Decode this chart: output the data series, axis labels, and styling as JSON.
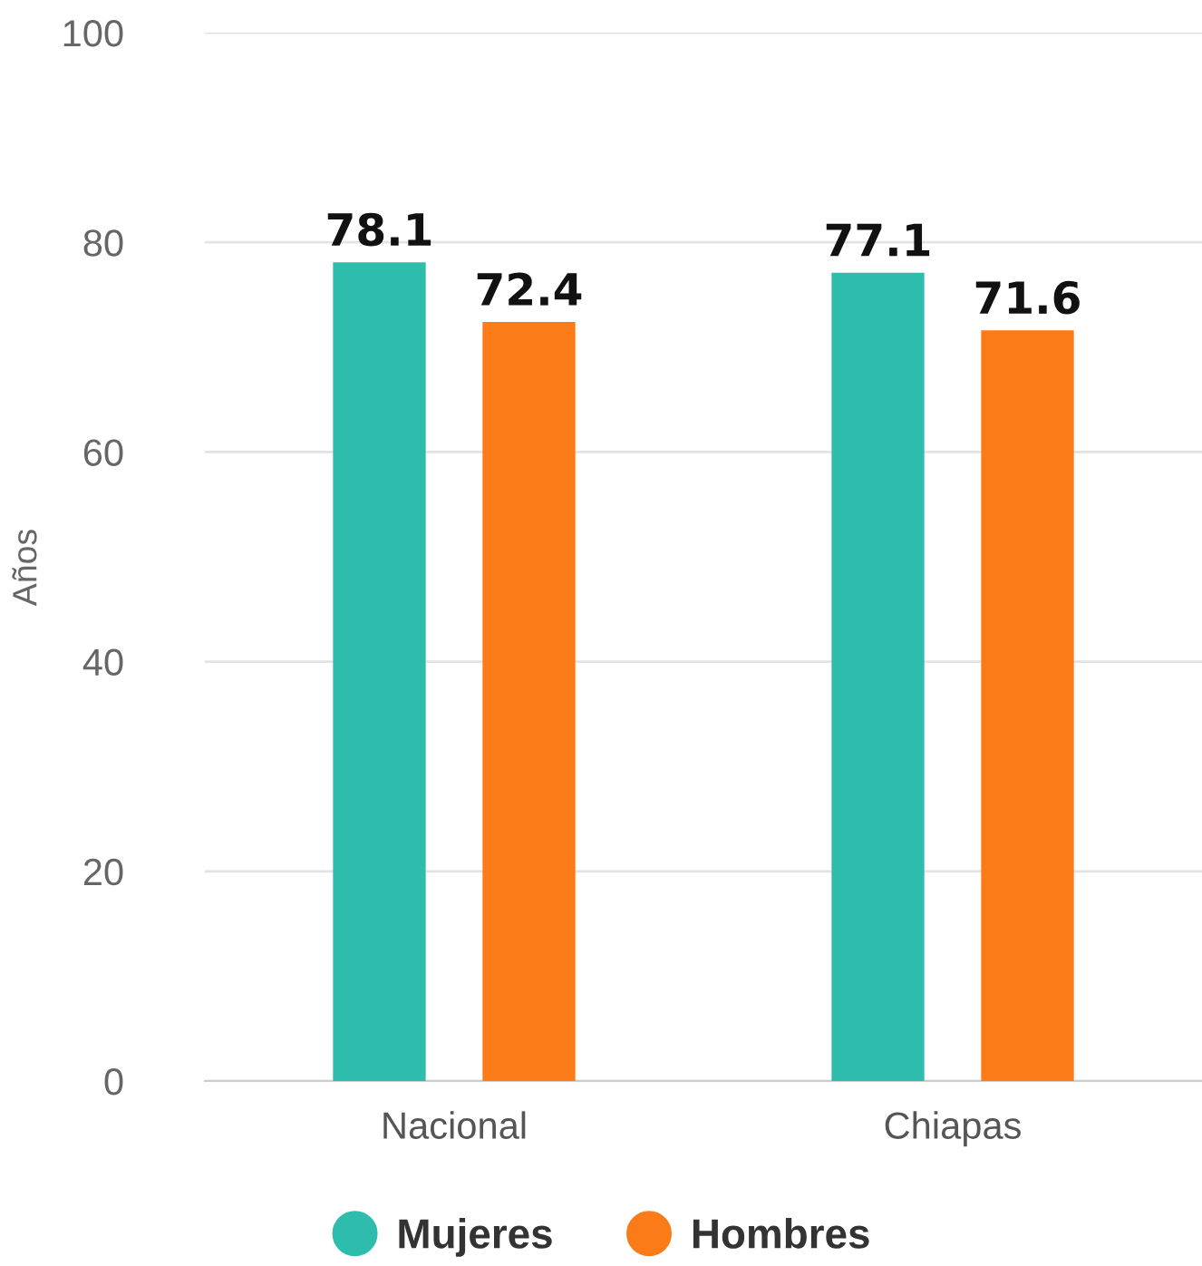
{
  "chart_data": {
    "type": "bar",
    "ylabel": "Años",
    "categories": [
      "Nacional",
      "Chiapas"
    ],
    "series": [
      {
        "name": "Mujeres",
        "color": "#2ebdac",
        "values": [
          78.1,
          77.1
        ]
      },
      {
        "name": "Hombres",
        "color": "#fa7b17",
        "values": [
          72.4,
          71.6
        ]
      }
    ],
    "ylim": [
      0,
      100
    ],
    "yticks": [
      0,
      20,
      40,
      60,
      80,
      100
    ],
    "grid": "y",
    "legend": "bottom",
    "data_labels": true
  }
}
